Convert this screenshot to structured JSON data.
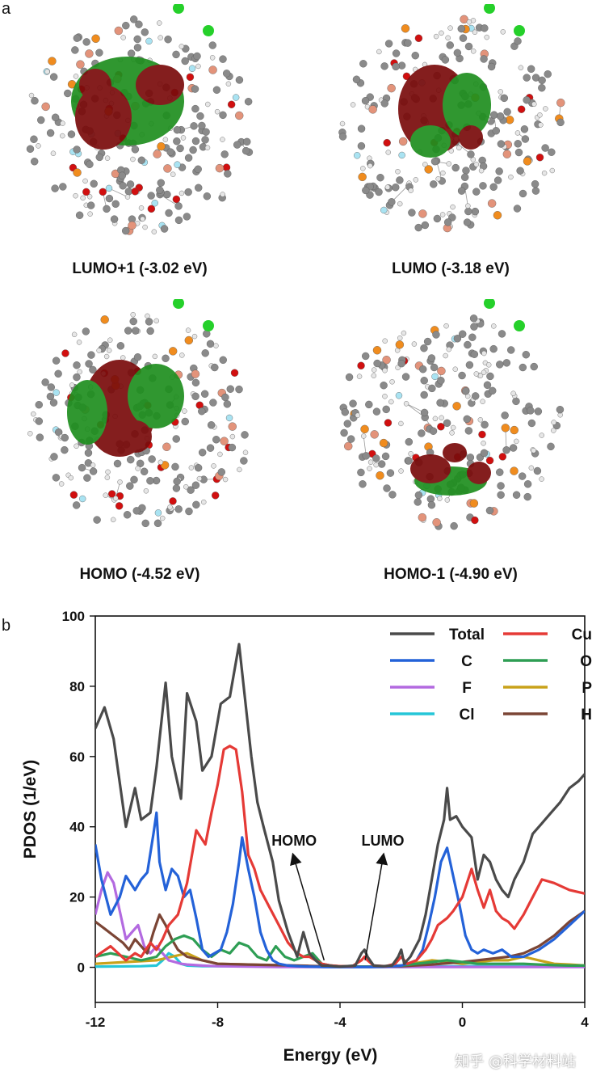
{
  "panel_a_label": "a",
  "panel_b_label": "b",
  "orbitals": [
    {
      "label": "LUMO+1 (-3.02 eV)",
      "green": "#1f8f1f",
      "red": "#7a0c0c"
    },
    {
      "label": "LUMO (-3.18 eV)",
      "green": "#1f8f1f",
      "red": "#7a0c0c"
    },
    {
      "label": "HOMO (-4.52 eV)",
      "green": "#1f8f1f",
      "red": "#7a0c0c"
    },
    {
      "label": "HOMO-1 (-4.90 eV)",
      "green": "#1f8f1f",
      "red": "#7a0c0c"
    }
  ],
  "atom_colors": {
    "carbon": "#8a8a8a",
    "hydrogen": "#e6e6e6",
    "copper": "#e3937a",
    "oxygen": "#d10f0f",
    "phosphorus": "#f08c1e",
    "fluorine": "#a9e3f2",
    "chlorine": "#25d02a"
  },
  "watermark": "知乎 @科学材料站",
  "chart_data": {
    "type": "line",
    "xlabel": "Energy (eV)",
    "ylabel": "PDOS (1/eV)",
    "xlim": [
      -12,
      4
    ],
    "ylim": [
      -10,
      100
    ],
    "xticks": [
      "-12",
      "-8",
      "-4",
      "0",
      "4"
    ],
    "xtick_values": [
      -12,
      -8,
      -4,
      0,
      4
    ],
    "yticks": [
      "0",
      "20",
      "40",
      "60",
      "80",
      "100"
    ],
    "ytick_values": [
      0,
      20,
      40,
      60,
      80,
      100
    ],
    "legend_position": "top-right",
    "annotations": [
      {
        "text": "HOMO",
        "x": -4.52,
        "y": 2,
        "text_x": -5.5,
        "text_y": 31
      },
      {
        "text": "LUMO",
        "x": -3.18,
        "y": 2,
        "text_x": -2.6,
        "text_y": 31
      }
    ],
    "series": [
      {
        "name": "Total",
        "color": "#4a4a4a",
        "x": [
          -12,
          -11.7,
          -11.4,
          -11,
          -10.7,
          -10.5,
          -10.2,
          -10,
          -9.7,
          -9.5,
          -9.2,
          -9,
          -8.7,
          -8.5,
          -8.2,
          -7.9,
          -7.6,
          -7.3,
          -7.1,
          -6.9,
          -6.7,
          -6.5,
          -6.2,
          -6,
          -5.7,
          -5.4,
          -5.2,
          -5,
          -4.8,
          -4.6,
          -4.4,
          -4.2,
          -4,
          -3.8,
          -3.5,
          -3.3,
          -3.2,
          -3.1,
          -2.9,
          -2.6,
          -2.3,
          -2.1,
          -2,
          -1.9,
          -1.7,
          -1.4,
          -1.2,
          -1,
          -0.8,
          -0.6,
          -0.5,
          -0.4,
          -0.2,
          0,
          0.3,
          0.5,
          0.7,
          0.9,
          1.1,
          1.3,
          1.5,
          1.7,
          2,
          2.3,
          2.6,
          2.9,
          3.2,
          3.5,
          3.8,
          4
        ],
        "y": [
          68,
          74,
          65,
          40,
          51,
          42,
          44,
          57,
          81,
          60,
          48,
          78,
          70,
          56,
          60,
          75,
          77,
          92,
          76,
          60,
          47,
          40,
          30,
          19,
          10,
          3,
          10,
          4,
          2,
          0.5,
          0.5,
          0.3,
          0.2,
          0.3,
          0.5,
          4,
          5,
          3,
          0.5,
          0.3,
          0.5,
          3,
          5,
          1,
          3,
          8,
          15,
          25,
          35,
          42,
          51,
          42,
          43,
          40,
          37,
          25,
          32,
          30,
          25,
          22,
          20,
          25,
          30,
          38,
          41,
          44,
          47,
          51,
          53,
          55
        ]
      },
      {
        "name": "Cu",
        "color": "#e53a36",
        "x": [
          -12,
          -11.5,
          -11,
          -10.7,
          -10.5,
          -10.2,
          -10,
          -9.8,
          -9.6,
          -9.3,
          -9,
          -8.7,
          -8.4,
          -8.2,
          -8,
          -7.8,
          -7.6,
          -7.4,
          -7.2,
          -7,
          -6.8,
          -6.6,
          -6.3,
          -6,
          -5.7,
          -5.4,
          -5.2,
          -5,
          -4.8,
          -4.6,
          -4.3,
          -4,
          -3.6,
          -3.3,
          -3.2,
          -3.1,
          -2.9,
          -2.5,
          -2.2,
          -2,
          -1.8,
          -1.5,
          -1.2,
          -1,
          -0.8,
          -0.5,
          -0.3,
          0,
          0.3,
          0.5,
          0.7,
          0.9,
          1.1,
          1.3,
          1.5,
          1.7,
          2,
          2.3,
          2.6,
          3,
          3.5,
          4
        ],
        "y": [
          3,
          6,
          2,
          4,
          3,
          7,
          5,
          8,
          12,
          15,
          24,
          39,
          35,
          44,
          52,
          62,
          63,
          62,
          50,
          32,
          28,
          22,
          17,
          12,
          7,
          4,
          3,
          3,
          2,
          1,
          0.5,
          0.3,
          0.3,
          2,
          3,
          2,
          0.5,
          0.3,
          1,
          3,
          1,
          2,
          5,
          8,
          12,
          14,
          16,
          20,
          28,
          22,
          17,
          22,
          16,
          14,
          13,
          11,
          15,
          20,
          25,
          24,
          22,
          21
        ]
      },
      {
        "name": "C",
        "color": "#2462d8",
        "x": [
          -12,
          -11.8,
          -11.5,
          -11.2,
          -11,
          -10.7,
          -10.5,
          -10.3,
          -10.1,
          -10,
          -9.9,
          -9.7,
          -9.5,
          -9.3,
          -9.1,
          -8.9,
          -8.7,
          -8.5,
          -8.3,
          -8.1,
          -7.9,
          -7.7,
          -7.5,
          -7.3,
          -7.2,
          -7,
          -6.8,
          -6.6,
          -6.4,
          -6.2,
          -6,
          -5.7,
          -5.4,
          -5,
          -4.5,
          -4,
          -3.5,
          -3,
          -2.5,
          -2,
          -1.8,
          -1.5,
          -1.3,
          -1.1,
          -0.9,
          -0.7,
          -0.5,
          -0.3,
          -0.1,
          0.1,
          0.3,
          0.5,
          0.7,
          1,
          1.3,
          1.6,
          2,
          2.5,
          3,
          3.5,
          4
        ],
        "y": [
          35,
          25,
          15,
          20,
          26,
          22,
          25,
          27,
          38,
          44,
          30,
          22,
          28,
          26,
          20,
          22,
          14,
          5,
          3,
          4,
          5,
          10,
          18,
          30,
          37,
          28,
          20,
          10,
          5,
          2,
          1,
          0.5,
          0.3,
          0.2,
          0.1,
          0.1,
          0.1,
          0.1,
          0.2,
          0.5,
          1,
          2,
          5,
          12,
          20,
          30,
          34,
          26,
          18,
          9,
          5,
          4,
          5,
          4,
          5,
          3,
          3,
          5,
          8,
          12,
          16
        ]
      },
      {
        "name": "O",
        "color": "#2e9e54",
        "x": [
          -12,
          -11.5,
          -11,
          -10.5,
          -10,
          -9.7,
          -9.4,
          -9.1,
          -8.8,
          -8.5,
          -8.2,
          -7.9,
          -7.6,
          -7.3,
          -7,
          -6.7,
          -6.4,
          -6.1,
          -5.8,
          -5.5,
          -5.2,
          -4.9,
          -4.6,
          -4.3,
          -4,
          -3.5,
          -3,
          -2.5,
          -2,
          -1.5,
          -1,
          -0.5,
          0,
          0.5,
          1,
          1.5,
          2,
          2.5,
          3,
          3.5,
          4
        ],
        "y": [
          3,
          4,
          3,
          2,
          3,
          6,
          8,
          9,
          8,
          5,
          3,
          5,
          4,
          7,
          6,
          3,
          2,
          6,
          3,
          2,
          3,
          4,
          1,
          0.5,
          0.3,
          0.2,
          0.2,
          0.3,
          0.5,
          1,
          1.5,
          2,
          1.5,
          1,
          1,
          1,
          1,
          0.8,
          0.6,
          0.5,
          0.5
        ]
      },
      {
        "name": "F",
        "color": "#b36ae0",
        "x": [
          -12,
          -11.8,
          -11.6,
          -11.4,
          -11.2,
          -11,
          -10.8,
          -10.6,
          -10.4,
          -10.2,
          -10,
          -9.8,
          -9.6,
          -9.4,
          -9.2,
          -9,
          -8.5,
          -8,
          -7,
          -6,
          -5,
          -4,
          -2,
          0,
          2,
          4
        ],
        "y": [
          15,
          22,
          27,
          24,
          16,
          8,
          10,
          12,
          6,
          4,
          6,
          4,
          2,
          1.5,
          1,
          0.8,
          0.5,
          0.3,
          0.2,
          0.1,
          0.1,
          0.1,
          0.1,
          0.1,
          0.1,
          0.1
        ]
      },
      {
        "name": "P",
        "color": "#c9a21a",
        "x": [
          -12,
          -11,
          -10,
          -9.5,
          -9,
          -8.5,
          -8,
          -7,
          -6,
          -5,
          -4,
          -3,
          -2,
          -1,
          -0.5,
          0,
          0.5,
          1,
          1.5,
          2,
          2.5,
          3,
          3.5,
          4
        ],
        "y": [
          1,
          1.5,
          2,
          3,
          4,
          2,
          1,
          0.8,
          0.5,
          0.3,
          0.2,
          0.2,
          0.5,
          2,
          1.5,
          1,
          1.5,
          2,
          2,
          3,
          2,
          1,
          0.8,
          0.5
        ]
      },
      {
        "name": "Cl",
        "color": "#25c6d8",
        "x": [
          -12,
          -10.5,
          -10,
          -9.8,
          -9.6,
          -9.4,
          -9.2,
          -9,
          -8.5,
          -8,
          -7,
          -6,
          -5,
          -4,
          -3,
          -2,
          -1,
          0,
          1,
          2,
          3,
          4
        ],
        "y": [
          0.2,
          0.3,
          0.5,
          2,
          4,
          3,
          1,
          0.5,
          0.3,
          0.3,
          0.3,
          0.3,
          0.2,
          0.1,
          0.1,
          0.1,
          0.2,
          0.3,
          0.3,
          0.3,
          0.3,
          0.3
        ]
      },
      {
        "name": "H",
        "color": "#7b4535",
        "x": [
          -12,
          -11.7,
          -11.4,
          -11.1,
          -10.9,
          -10.7,
          -10.5,
          -10.3,
          -10.1,
          -9.9,
          -9.7,
          -9.5,
          -9.3,
          -9,
          -8.5,
          -8,
          -7,
          -6,
          -5,
          -4,
          -3,
          -2,
          -1,
          0,
          0.5,
          1,
          1.5,
          2,
          2.5,
          3,
          3.5,
          4
        ],
        "y": [
          13,
          11,
          9,
          7,
          5,
          8,
          6,
          4,
          10,
          15,
          12,
          8,
          5,
          3,
          2,
          1,
          0.8,
          0.6,
          0.4,
          0.2,
          0.2,
          0.3,
          0.8,
          1.5,
          2,
          2.5,
          3,
          4,
          6,
          9,
          13,
          16
        ]
      }
    ]
  }
}
